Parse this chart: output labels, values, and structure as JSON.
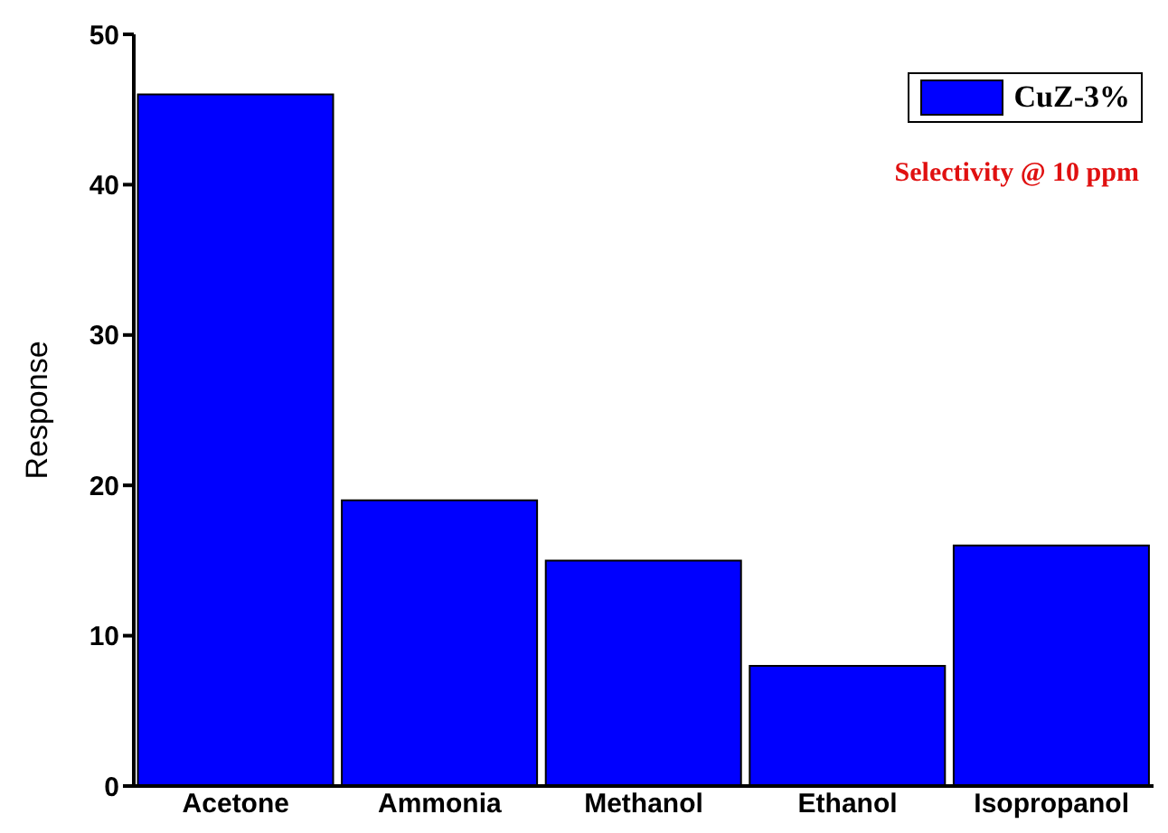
{
  "chart_data": {
    "type": "bar",
    "ylabel": "Response",
    "categories": [
      "Acetone",
      "Ammonia",
      "Methanol",
      "Ethanol",
      "Isopropanol"
    ],
    "series": [
      {
        "name": "CuZ-3%",
        "color": "#0000ff",
        "values": [
          46,
          19,
          15,
          8,
          16
        ]
      }
    ],
    "ylim": [
      0,
      50
    ],
    "yticks": [
      0,
      10,
      20,
      30,
      40,
      50
    ],
    "grid": false,
    "legend": "top right",
    "annotations": [
      "Selectivity @ 10 ppm"
    ]
  }
}
